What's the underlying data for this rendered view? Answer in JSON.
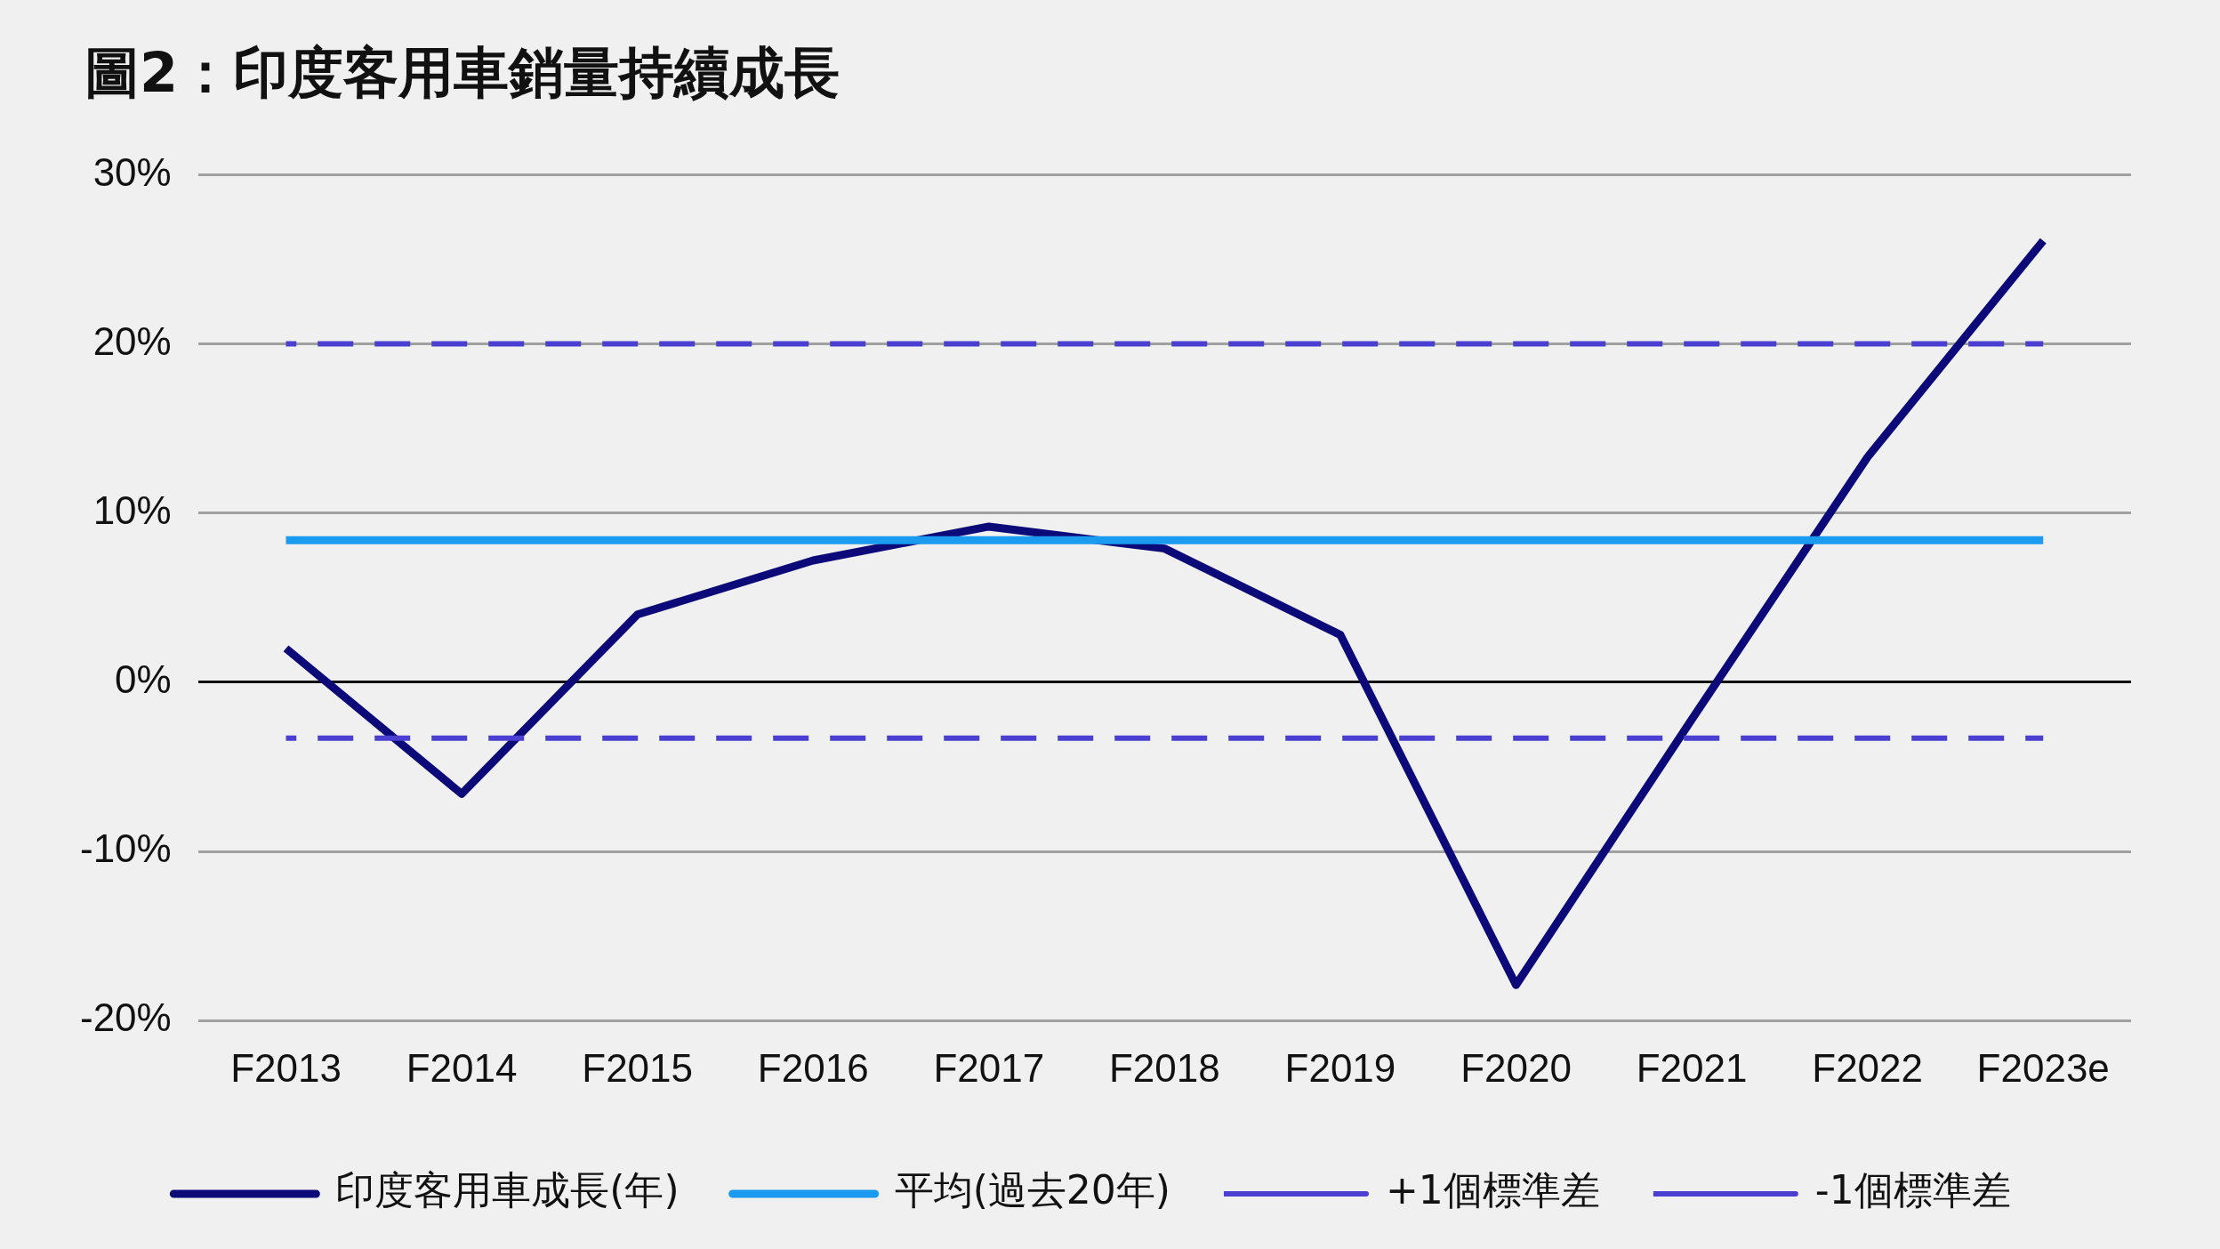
{
  "chart_data": {
    "type": "line",
    "title": "圖2：印度客用車銷量持續成長",
    "categories": [
      "F2013",
      "F2014",
      "F2015",
      "F2016",
      "F2017",
      "F2018",
      "F2019",
      "F2020",
      "F2021",
      "F2022",
      "F2023e"
    ],
    "series": [
      {
        "name": "印度客用車成長(年)",
        "color": "#0b0a78",
        "line_style": "solid",
        "values": [
          2,
          -6.6,
          4,
          7.2,
          9.2,
          7.9,
          2.8,
          -17.9,
          -2.2,
          13.3,
          26.1
        ]
      },
      {
        "name": "平均(過去20年)",
        "color": "#1a9bf0",
        "line_style": "solid",
        "values": [
          8.4,
          8.4,
          8.4,
          8.4,
          8.4,
          8.4,
          8.4,
          8.4,
          8.4,
          8.4,
          8.4
        ]
      },
      {
        "name": "+1個標準差",
        "color": "#4a3fd0",
        "line_style": "dashed",
        "values": [
          20,
          20,
          20,
          20,
          20,
          20,
          20,
          20,
          20,
          20,
          20
        ]
      },
      {
        "name": "-1個標準差",
        "color": "#4a3fd0",
        "line_style": "dashed",
        "values": [
          -3.3,
          -3.3,
          -3.3,
          -3.3,
          -3.3,
          -3.3,
          -3.3,
          -3.3,
          -3.3,
          -3.3,
          -3.3
        ]
      }
    ],
    "ylim": [
      -20,
      30
    ],
    "yticks": [
      {
        "value": -20,
        "label": "-20%"
      },
      {
        "value": -10,
        "label": "-10%"
      },
      {
        "value": 0,
        "label": "0%"
      },
      {
        "value": 10,
        "label": "10%"
      },
      {
        "value": 20,
        "label": "20%"
      },
      {
        "value": 30,
        "label": "30%"
      }
    ],
    "grid": "y",
    "legend": "bottom",
    "marker": "none"
  }
}
